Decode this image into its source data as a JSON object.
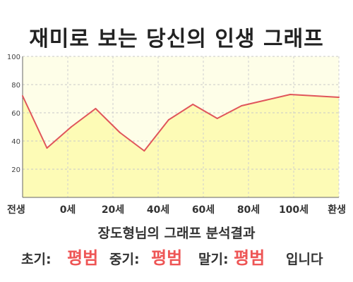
{
  "title": "재미로 보는 당신의 인생 그래프",
  "result_title": "장도형님의 그래프 분석결과",
  "verdict": {
    "early_label": "초기:",
    "early_value": "평범",
    "middle_label": "중기:",
    "middle_value": "평범",
    "late_label": "말기:",
    "late_value": "평범",
    "suffix": "입니다"
  },
  "colors": {
    "fill": "#fdfbb6",
    "line": "#e0555b",
    "plot_bg": "#fefee8",
    "accent": "#ee5555"
  },
  "chart_data": {
    "type": "area",
    "title": "재미로 보는 당신의 인생 그래프",
    "xlabel": "",
    "ylabel": "",
    "x_tick_labels": [
      "전생",
      "0세",
      "20세",
      "40세",
      "60세",
      "80세",
      "100세",
      "환생"
    ],
    "y_tick_labels": [
      "20",
      "40",
      "60",
      "80",
      "100"
    ],
    "ylim": [
      0,
      100
    ],
    "grid": true,
    "legend": "none",
    "series": [
      {
        "values": [
          72,
          35,
          50,
          63,
          46,
          33,
          55,
          66,
          56,
          65,
          69,
          73,
          72,
          71
        ]
      }
    ]
  }
}
